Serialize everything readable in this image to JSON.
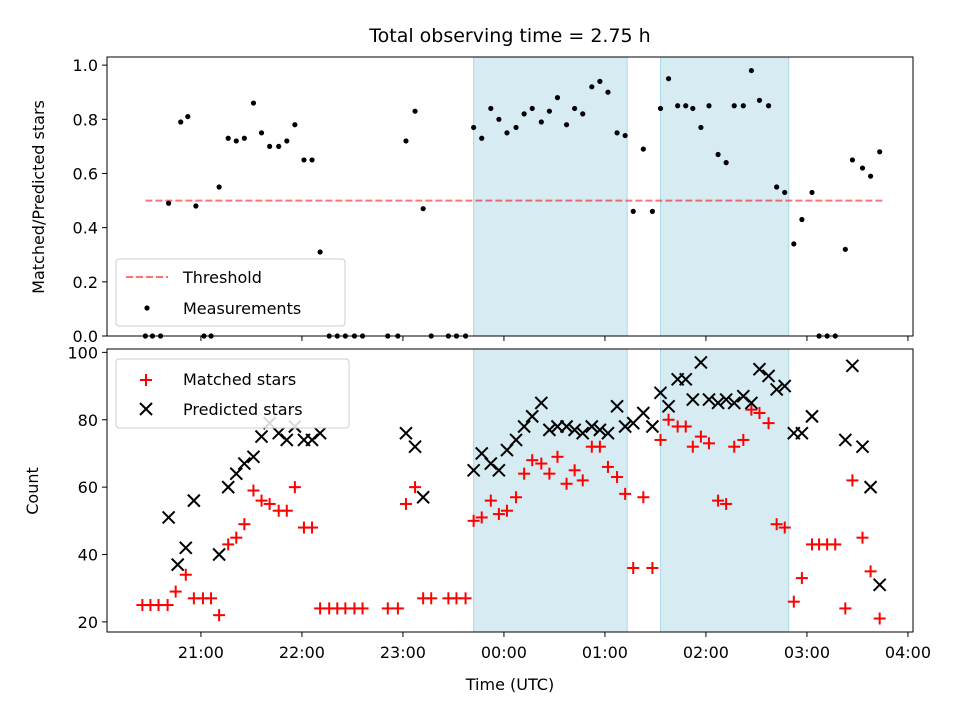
{
  "chart_data": [
    {
      "type": "scatter",
      "title": "Total observing time = 2.75 h",
      "ylabel": "Matched/Predicted stars",
      "xlim_hours": [
        20.07,
        28.05
      ],
      "ylim": [
        0,
        1.03
      ],
      "yticks": [
        "0.0",
        "0.2",
        "0.4",
        "0.6",
        "0.8",
        "1.0"
      ],
      "shaded_intervals_hours": [
        [
          23.7,
          25.22
        ],
        [
          25.55,
          26.82
        ]
      ],
      "shade_color": "#add8e6",
      "threshold": {
        "label": "Threshold",
        "value": 0.5,
        "x_range": [
          20.45,
          27.75
        ],
        "color": "#ff0000"
      },
      "legend": {
        "location": "lower left",
        "entries": [
          "Threshold",
          "Measurements"
        ]
      },
      "series": [
        {
          "name": "Measurements",
          "color": "#000000",
          "points": [
            [
              20.45,
              0
            ],
            [
              20.52,
              0
            ],
            [
              20.6,
              0
            ],
            [
              20.68,
              0.49
            ],
            [
              20.8,
              0.79
            ],
            [
              20.87,
              0.81
            ],
            [
              20.95,
              0.48
            ],
            [
              21.03,
              0
            ],
            [
              21.1,
              0
            ],
            [
              21.18,
              0.55
            ],
            [
              21.27,
              0.73
            ],
            [
              21.35,
              0.72
            ],
            [
              21.43,
              0.73
            ],
            [
              21.52,
              0.86
            ],
            [
              21.6,
              0.75
            ],
            [
              21.68,
              0.7
            ],
            [
              21.77,
              0.7
            ],
            [
              21.85,
              0.72
            ],
            [
              21.93,
              0.78
            ],
            [
              22.02,
              0.65
            ],
            [
              22.1,
              0.65
            ],
            [
              22.18,
              0.31
            ],
            [
              22.27,
              0
            ],
            [
              22.35,
              0
            ],
            [
              22.43,
              0
            ],
            [
              22.52,
              0
            ],
            [
              22.6,
              0
            ],
            [
              22.85,
              0
            ],
            [
              22.95,
              0
            ],
            [
              23.03,
              0.72
            ],
            [
              23.12,
              0.83
            ],
            [
              23.2,
              0.47
            ],
            [
              23.28,
              0
            ],
            [
              23.45,
              0
            ],
            [
              23.53,
              0
            ],
            [
              23.62,
              0
            ],
            [
              23.7,
              0.77
            ],
            [
              23.78,
              0.73
            ],
            [
              23.87,
              0.84
            ],
            [
              23.95,
              0.8
            ],
            [
              24.03,
              0.75
            ],
            [
              24.12,
              0.77
            ],
            [
              24.2,
              0.82
            ],
            [
              24.28,
              0.84
            ],
            [
              24.37,
              0.79
            ],
            [
              24.45,
              0.83
            ],
            [
              24.53,
              0.88
            ],
            [
              24.62,
              0.78
            ],
            [
              24.7,
              0.84
            ],
            [
              24.78,
              0.82
            ],
            [
              24.87,
              0.92
            ],
            [
              24.95,
              0.94
            ],
            [
              25.03,
              0.9
            ],
            [
              25.12,
              0.75
            ],
            [
              25.2,
              0.74
            ],
            [
              25.28,
              0.46
            ],
            [
              25.38,
              0.69
            ],
            [
              25.47,
              0.46
            ],
            [
              25.55,
              0.84
            ],
            [
              25.63,
              0.95
            ],
            [
              25.72,
              0.85
            ],
            [
              25.8,
              0.85
            ],
            [
              25.87,
              0.84
            ],
            [
              25.95,
              0.77
            ],
            [
              26.03,
              0.85
            ],
            [
              26.12,
              0.67
            ],
            [
              26.2,
              0.64
            ],
            [
              26.28,
              0.85
            ],
            [
              26.37,
              0.85
            ],
            [
              26.45,
              0.98
            ],
            [
              26.53,
              0.87
            ],
            [
              26.62,
              0.85
            ],
            [
              26.7,
              0.55
            ],
            [
              26.78,
              0.53
            ],
            [
              26.87,
              0.34
            ],
            [
              26.95,
              0.43
            ],
            [
              27.05,
              0.53
            ],
            [
              27.12,
              0
            ],
            [
              27.2,
              0
            ],
            [
              27.28,
              0
            ],
            [
              27.38,
              0.32
            ],
            [
              27.45,
              0.65
            ],
            [
              27.55,
              0.62
            ],
            [
              27.63,
              0.59
            ],
            [
              27.72,
              0.68
            ]
          ]
        }
      ]
    },
    {
      "type": "scatter",
      "xlabel": "Time (UTC)",
      "ylabel": "Count",
      "xlim_hours": [
        20.07,
        28.05
      ],
      "xticks": [
        "21:00",
        "22:00",
        "23:00",
        "00:00",
        "01:00",
        "02:00",
        "03:00",
        "04:00"
      ],
      "xtick_hours": [
        21,
        22,
        23,
        24,
        25,
        26,
        27,
        28
      ],
      "ylim": [
        17,
        101
      ],
      "yticks": [
        "20",
        "40",
        "60",
        "80",
        "100"
      ],
      "ytick_values": [
        20,
        40,
        60,
        80,
        100
      ],
      "shaded_intervals_hours": [
        [
          23.7,
          25.22
        ],
        [
          25.55,
          26.82
        ]
      ],
      "shade_color": "#add8e6",
      "legend": {
        "location": "upper left",
        "entries": [
          "Matched stars",
          "Predicted stars"
        ]
      },
      "series": [
        {
          "name": "Matched stars",
          "marker": "+",
          "color": "#ff0000",
          "points": [
            [
              20.42,
              25
            ],
            [
              20.5,
              25
            ],
            [
              20.58,
              25
            ],
            [
              20.67,
              25
            ],
            [
              20.75,
              29
            ],
            [
              20.85,
              34
            ],
            [
              20.93,
              27
            ],
            [
              21.02,
              27
            ],
            [
              21.1,
              27
            ],
            [
              21.18,
              22
            ],
            [
              21.27,
              43
            ],
            [
              21.35,
              45
            ],
            [
              21.43,
              49
            ],
            [
              21.52,
              59
            ],
            [
              21.6,
              56
            ],
            [
              21.68,
              55
            ],
            [
              21.77,
              53
            ],
            [
              21.85,
              53
            ],
            [
              21.93,
              60
            ],
            [
              22.02,
              48
            ],
            [
              22.1,
              48
            ],
            [
              22.18,
              24
            ],
            [
              22.27,
              24
            ],
            [
              22.35,
              24
            ],
            [
              22.43,
              24
            ],
            [
              22.52,
              24
            ],
            [
              22.6,
              24
            ],
            [
              22.85,
              24
            ],
            [
              22.95,
              24
            ],
            [
              23.03,
              55
            ],
            [
              23.12,
              60
            ],
            [
              23.2,
              27
            ],
            [
              23.28,
              27
            ],
            [
              23.45,
              27
            ],
            [
              23.53,
              27
            ],
            [
              23.62,
              27
            ],
            [
              23.7,
              50
            ],
            [
              23.78,
              51
            ],
            [
              23.87,
              56
            ],
            [
              23.95,
              52
            ],
            [
              24.03,
              53
            ],
            [
              24.12,
              57
            ],
            [
              24.2,
              64
            ],
            [
              24.28,
              68
            ],
            [
              24.37,
              67
            ],
            [
              24.45,
              64
            ],
            [
              24.53,
              69
            ],
            [
              24.62,
              61
            ],
            [
              24.7,
              65
            ],
            [
              24.78,
              62
            ],
            [
              24.87,
              72
            ],
            [
              24.95,
              72
            ],
            [
              25.03,
              66
            ],
            [
              25.12,
              63
            ],
            [
              25.2,
              58
            ],
            [
              25.28,
              36
            ],
            [
              25.38,
              57
            ],
            [
              25.47,
              36
            ],
            [
              25.55,
              74
            ],
            [
              25.63,
              80
            ],
            [
              25.72,
              78
            ],
            [
              25.8,
              78
            ],
            [
              25.87,
              72
            ],
            [
              25.95,
              75
            ],
            [
              26.03,
              73
            ],
            [
              26.12,
              56
            ],
            [
              26.2,
              55
            ],
            [
              26.28,
              72
            ],
            [
              26.37,
              74
            ],
            [
              26.45,
              83
            ],
            [
              26.53,
              82
            ],
            [
              26.62,
              79
            ],
            [
              26.7,
              49
            ],
            [
              26.78,
              48
            ],
            [
              26.87,
              26
            ],
            [
              26.95,
              33
            ],
            [
              27.05,
              43
            ],
            [
              27.12,
              43
            ],
            [
              27.2,
              43
            ],
            [
              27.28,
              43
            ],
            [
              27.38,
              24
            ],
            [
              27.45,
              62
            ],
            [
              27.55,
              45
            ],
            [
              27.63,
              35
            ],
            [
              27.72,
              21
            ]
          ]
        },
        {
          "name": "Predicted stars",
          "marker": "x",
          "color": "#000000",
          "points": [
            [
              20.68,
              51
            ],
            [
              20.77,
              37
            ],
            [
              20.85,
              42
            ],
            [
              20.93,
              56
            ],
            [
              21.18,
              40
            ],
            [
              21.27,
              60
            ],
            [
              21.35,
              64
            ],
            [
              21.43,
              67
            ],
            [
              21.52,
              69
            ],
            [
              21.6,
              75
            ],
            [
              21.68,
              79
            ],
            [
              21.77,
              76
            ],
            [
              21.85,
              74
            ],
            [
              21.93,
              78
            ],
            [
              22.02,
              74
            ],
            [
              22.1,
              74
            ],
            [
              22.18,
              76
            ],
            [
              23.03,
              76
            ],
            [
              23.12,
              72
            ],
            [
              23.2,
              57
            ],
            [
              23.7,
              65
            ],
            [
              23.78,
              70
            ],
            [
              23.87,
              67
            ],
            [
              23.95,
              65
            ],
            [
              24.03,
              71
            ],
            [
              24.12,
              74
            ],
            [
              24.2,
              78
            ],
            [
              24.28,
              81
            ],
            [
              24.37,
              85
            ],
            [
              24.45,
              77
            ],
            [
              24.53,
              78
            ],
            [
              24.62,
              78
            ],
            [
              24.7,
              77
            ],
            [
              24.78,
              76
            ],
            [
              24.87,
              78
            ],
            [
              24.95,
              77
            ],
            [
              25.03,
              76
            ],
            [
              25.12,
              84
            ],
            [
              25.2,
              78
            ],
            [
              25.28,
              79
            ],
            [
              25.38,
              82
            ],
            [
              25.47,
              78
            ],
            [
              25.55,
              88
            ],
            [
              25.63,
              84
            ],
            [
              25.72,
              92
            ],
            [
              25.8,
              92
            ],
            [
              25.87,
              86
            ],
            [
              25.95,
              97
            ],
            [
              26.03,
              86
            ],
            [
              26.12,
              85
            ],
            [
              26.2,
              86
            ],
            [
              26.28,
              85
            ],
            [
              26.37,
              87
            ],
            [
              26.45,
              85
            ],
            [
              26.53,
              95
            ],
            [
              26.62,
              93
            ],
            [
              26.7,
              89
            ],
            [
              26.78,
              90
            ],
            [
              26.87,
              76
            ],
            [
              26.95,
              76
            ],
            [
              27.05,
              81
            ],
            [
              27.38,
              74
            ],
            [
              27.45,
              96
            ],
            [
              27.55,
              72
            ],
            [
              27.63,
              60
            ],
            [
              27.72,
              31
            ]
          ]
        }
      ]
    }
  ]
}
